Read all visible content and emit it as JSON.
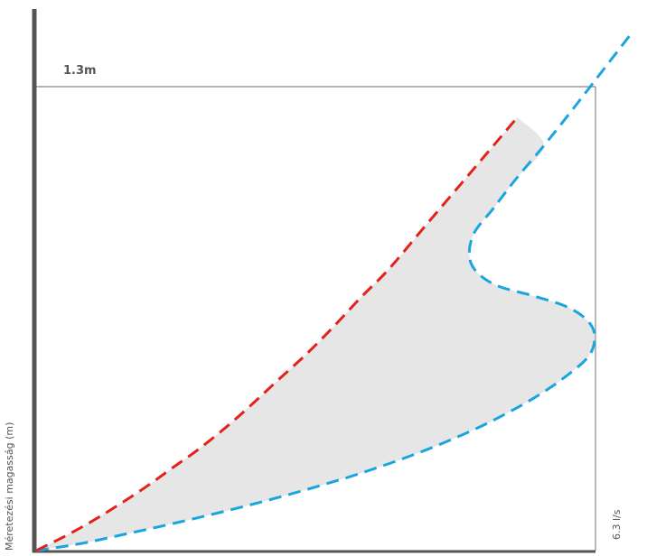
{
  "chart_data": {
    "type": "area",
    "title": "",
    "xlabel": "",
    "ylabel": "Méretezési magasság (m)",
    "y_max_label": "1.3m",
    "x_max_label": "6.3 l/s",
    "xlim": [
      0,
      6.3
    ],
    "ylim": [
      0,
      1.3
    ],
    "grid": false,
    "colors": {
      "axis": "#555555",
      "frame": "#888888",
      "band_fill": "#e6e6e6",
      "upper_series": "#e32219",
      "lower_series": "#1aa6dd"
    },
    "series": [
      {
        "x": [
          0,
          0.33,
          0.64,
          0.94,
          1.24,
          1.53,
          1.83,
          2.14,
          2.44,
          2.73,
          3.05,
          3.36,
          3.66,
          3.97,
          4.37,
          4.78,
          5.08,
          5.42
        ],
        "y": [
          0,
          0.041,
          0.084,
          0.13,
          0.179,
          0.231,
          0.284,
          0.346,
          0.412,
          0.479,
          0.552,
          0.63,
          0.71,
          0.788,
          0.906,
          1.026,
          1.114,
          1.214
        ]
      },
      {
        "x": [
          0,
          0.51,
          1.02,
          1.53,
          2.04,
          2.55,
          3.06,
          3.57,
          4.08,
          4.59,
          5.1,
          5.61,
          5.97,
          6.23,
          6.29,
          6.2,
          5.97,
          5.61,
          5.15,
          4.9,
          4.92,
          5.15,
          5.41,
          5.72,
          6.02,
          6.3,
          6.7
        ],
        "y": [
          0,
          0.02,
          0.047,
          0.075,
          0.105,
          0.137,
          0.172,
          0.21,
          0.253,
          0.302,
          0.359,
          0.428,
          0.489,
          0.547,
          0.604,
          0.647,
          0.684,
          0.713,
          0.747,
          0.804,
          0.883,
          0.959,
          1.043,
          1.135,
          1.229,
          1.319,
          1.448
        ]
      }
    ]
  }
}
